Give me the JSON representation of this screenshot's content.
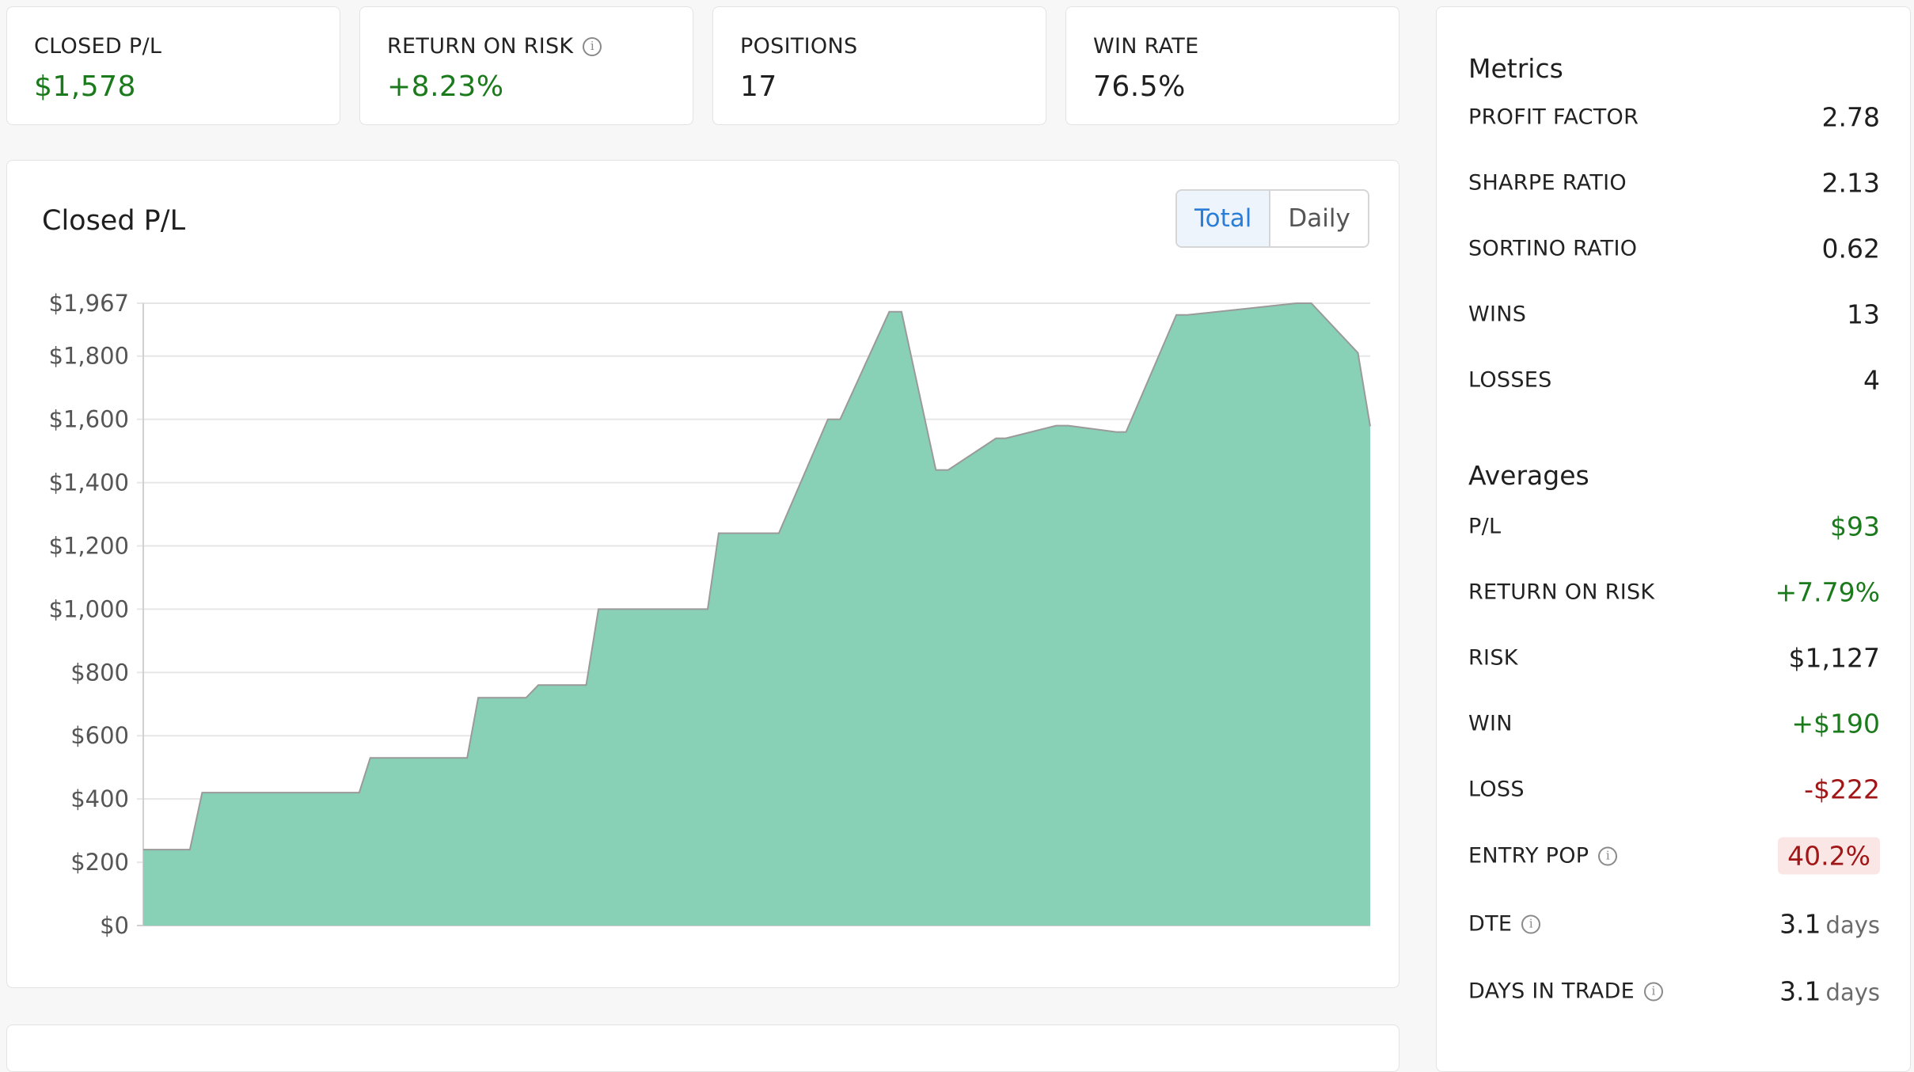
{
  "stats": [
    {
      "label": "CLOSED P/L",
      "value": "$1,578",
      "tone": "green",
      "info": false
    },
    {
      "label": "RETURN ON RISK",
      "value": "+8.23%",
      "tone": "green",
      "info": true
    },
    {
      "label": "POSITIONS",
      "value": "17",
      "tone": "neutral",
      "info": false
    },
    {
      "label": "WIN RATE",
      "value": "76.5%",
      "tone": "neutral",
      "info": false
    }
  ],
  "chart_card": {
    "title": "Closed P/L",
    "toggle": {
      "total": "Total",
      "daily": "Daily",
      "selected": "Total"
    }
  },
  "chart_data": {
    "type": "area",
    "title": "Closed P/L",
    "xlabel": "",
    "ylabel": "",
    "ylim": [
      0,
      1967
    ],
    "y_ticks": [
      "$0",
      "$200",
      "$400",
      "$600",
      "$800",
      "$1,000",
      "$1,200",
      "$1,400",
      "$1,600",
      "$1,800",
      "$1,967"
    ],
    "y_tick_values": [
      0,
      200,
      400,
      600,
      800,
      1000,
      1200,
      1400,
      1600,
      1800,
      1967
    ],
    "x_positions": [
      0,
      0.038,
      0.048,
      0.176,
      0.185,
      0.264,
      0.273,
      0.312,
      0.322,
      0.361,
      0.371,
      0.46,
      0.469,
      0.508,
      0.51,
      0.518,
      0.558,
      0.566,
      0.56,
      0.558,
      0.568,
      0.608,
      0.618,
      0.646,
      0.656,
      0.695,
      0.703,
      0.744,
      0.754,
      0.793,
      0.801,
      0.842,
      0.851,
      0.94,
      0.952,
      0.99,
      1.0
    ],
    "values": [
      240,
      240,
      420,
      420,
      530,
      530,
      720,
      720,
      760,
      760,
      1000,
      1000,
      1240,
      1240,
      1240,
      1240,
      1600,
      1600,
      1600,
      1600,
      1600,
      1940,
      1940,
      1440,
      1440,
      1540,
      1540,
      1580,
      1580,
      1560,
      1560,
      1930,
      1930,
      1967,
      1967,
      1810,
      1578
    ],
    "grid": true,
    "fill_color": "#88d1b6",
    "line_color": "#9a9a9a"
  },
  "metrics": {
    "title": "Metrics",
    "rows": [
      {
        "label": "PROFIT FACTOR",
        "value": "2.78",
        "tone": "neutral"
      },
      {
        "label": "SHARPE RATIO",
        "value": "2.13",
        "tone": "neutral"
      },
      {
        "label": "SORTINO RATIO",
        "value": "0.62",
        "tone": "neutral"
      },
      {
        "label": "WINS",
        "value": "13",
        "tone": "neutral"
      },
      {
        "label": "LOSSES",
        "value": "4",
        "tone": "neutral"
      }
    ]
  },
  "averages": {
    "title": "Averages",
    "rows": [
      {
        "label": "P/L",
        "value": "$93",
        "tone": "green",
        "info": false
      },
      {
        "label": "RETURN ON RISK",
        "value": "+7.79%",
        "tone": "green",
        "info": false
      },
      {
        "label": "RISK",
        "value": "$1,127",
        "tone": "neutral",
        "info": false
      },
      {
        "label": "WIN",
        "value": "+$190",
        "tone": "green",
        "info": false
      },
      {
        "label": "LOSS",
        "value": "-$222",
        "tone": "red",
        "info": false
      },
      {
        "label": "ENTRY POP",
        "value": "40.2%",
        "tone": "badge-red",
        "info": true
      },
      {
        "label": "DTE",
        "value": "3.1",
        "unit": "days",
        "tone": "neutral",
        "info": true
      },
      {
        "label": "DAYS IN TRADE",
        "value": "3.1",
        "unit": "days",
        "tone": "neutral",
        "info": true
      }
    ]
  },
  "colors": {
    "positive": "#1b7a1b",
    "negative": "#a11616",
    "accent": "#2a7ed8"
  }
}
